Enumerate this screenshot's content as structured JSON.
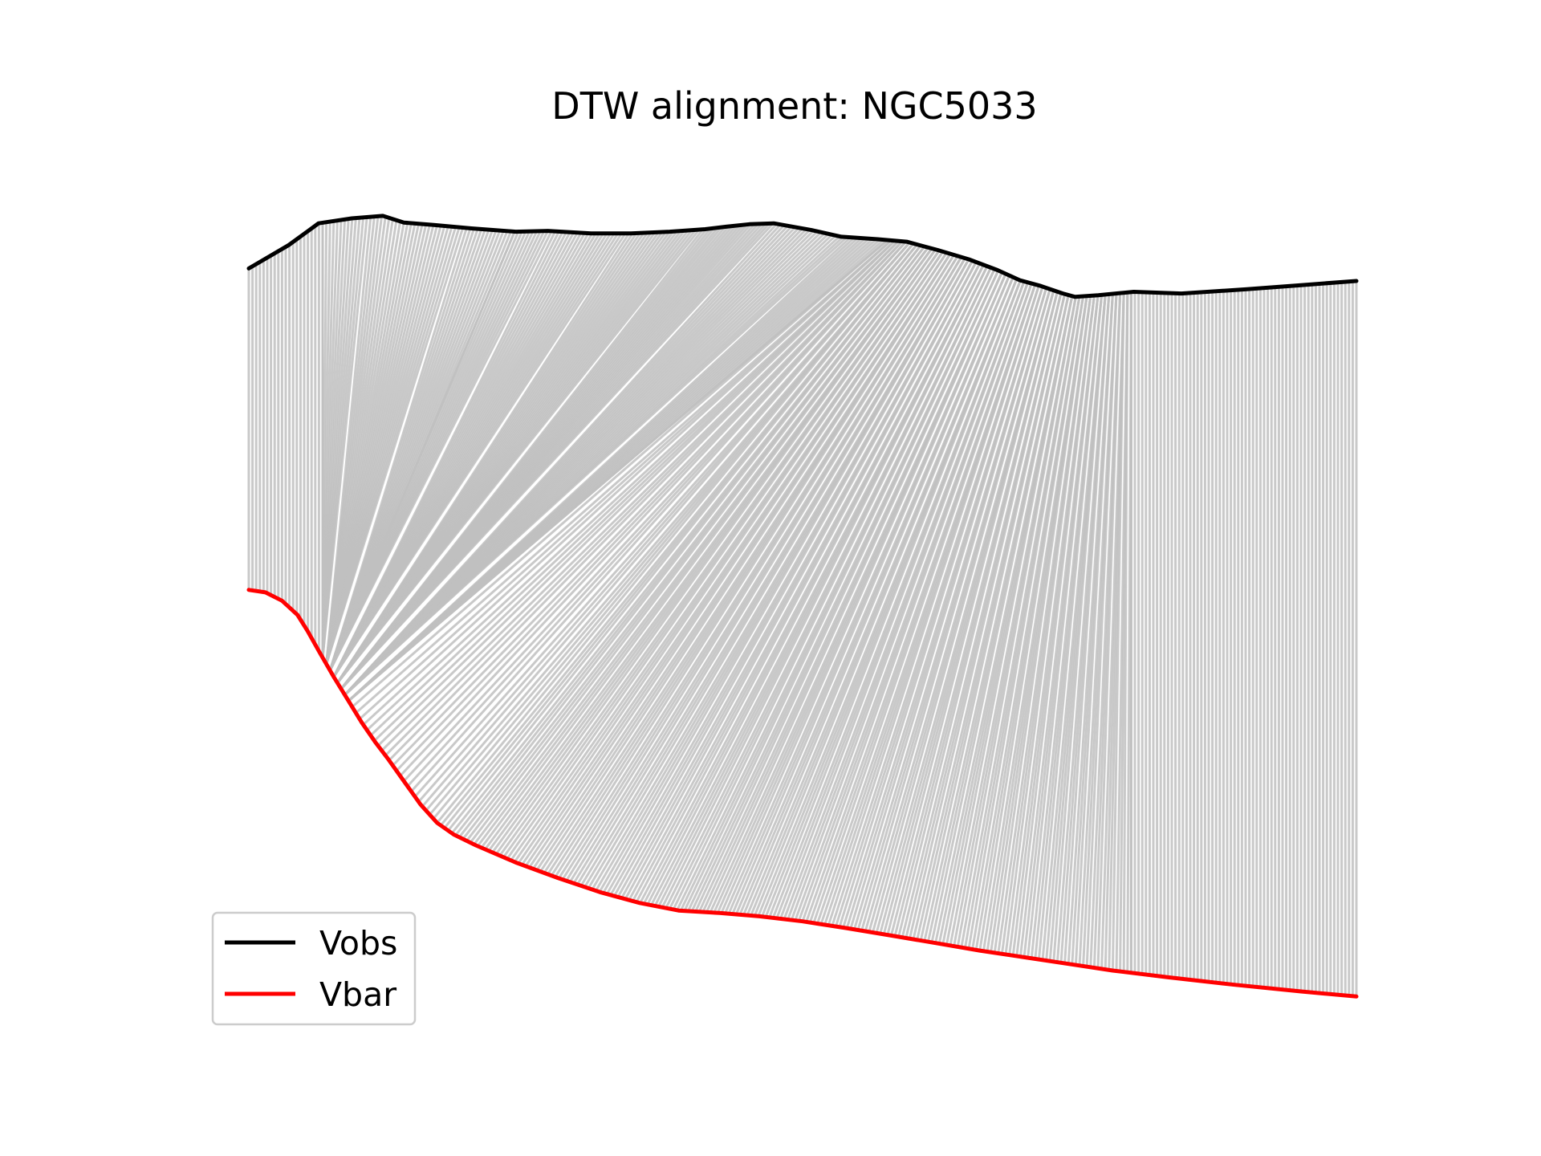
{
  "chart_data": {
    "type": "line",
    "title": "DTW alignment: NGC5033",
    "xlabel": "",
    "ylabel": "",
    "axes_visible": false,
    "grid": false,
    "legend": {
      "placement": "lower-left",
      "entries": [
        {
          "label": "Vobs",
          "color": "#000000"
        },
        {
          "label": "Vbar",
          "color": "#ff0000"
        }
      ]
    },
    "xlim": [
      0,
      100
    ],
    "ylim": [
      0,
      100
    ],
    "series": [
      {
        "name": "Vobs",
        "color": "#000000",
        "x": [
          0,
          3.6,
          6.3,
          9.3,
          12.1,
          14.0,
          16.7,
          20.1,
          24.1,
          27.0,
          30.9,
          34.5,
          38.0,
          41.2,
          43.1,
          45.2,
          47.4,
          50.8,
          53.5,
          56.8,
          59.4,
          62.2,
          65.0,
          67.6,
          69.6,
          71.5,
          73.5,
          74.6,
          76.7,
          79.9,
          84.2,
          90.0,
          95.0,
          100.0
        ],
        "y": [
          89.0,
          91.8,
          94.4,
          95.0,
          95.3,
          94.5,
          94.2,
          93.8,
          93.4,
          93.5,
          93.2,
          93.2,
          93.4,
          93.7,
          94.0,
          94.3,
          94.4,
          93.6,
          92.8,
          92.5,
          92.2,
          91.2,
          90.1,
          88.8,
          87.6,
          86.9,
          86.0,
          85.6,
          85.8,
          86.2,
          86.0,
          86.5,
          87.0,
          87.5
        ]
      },
      {
        "name": "Vbar",
        "color": "#ff0000",
        "x": [
          0,
          1.5,
          3.0,
          4.4,
          5.3,
          6.4,
          7.7,
          9.0,
          10.2,
          11.4,
          12.6,
          14.0,
          15.5,
          17.0,
          18.5,
          20.5,
          24.2,
          27.9,
          31.7,
          35.3,
          38.8,
          42.5,
          46.1,
          50.0,
          53.9,
          58.0,
          62.0,
          66.0,
          70.0,
          74.0,
          78.0,
          83.0,
          89.0,
          95.0,
          100.0
        ],
        "y": [
          50.5,
          50.2,
          49.2,
          47.5,
          45.6,
          43.0,
          40.0,
          37.2,
          34.6,
          32.3,
          30.2,
          27.6,
          24.8,
          22.6,
          21.2,
          19.9,
          17.8,
          16.0,
          14.3,
          13.0,
          12.1,
          11.8,
          11.4,
          10.8,
          10.0,
          9.1,
          8.2,
          7.3,
          6.5,
          5.7,
          4.9,
          4.1,
          3.2,
          2.4,
          1.8
        ]
      }
    ],
    "alignment_line_color": "#c0c0c0",
    "alignment_pairs": [
      [
        0,
        0
      ],
      [
        1,
        0
      ],
      [
        2,
        0
      ],
      [
        3,
        0
      ],
      [
        4,
        0
      ],
      [
        5,
        0
      ],
      [
        6,
        0
      ],
      [
        7,
        0
      ],
      [
        8,
        0
      ],
      [
        9,
        0
      ],
      [
        10,
        0
      ],
      [
        11,
        0
      ],
      [
        12,
        0
      ],
      [
        13,
        0
      ],
      [
        14,
        0
      ],
      [
        15,
        0
      ],
      [
        16,
        1
      ],
      [
        17,
        2
      ],
      [
        18,
        3
      ],
      [
        19,
        3
      ],
      [
        20,
        4
      ],
      [
        21,
        4
      ],
      [
        22,
        4
      ],
      [
        23,
        4
      ],
      [
        24,
        4
      ],
      [
        25,
        4
      ],
      [
        26,
        4
      ],
      [
        27,
        4
      ],
      [
        28,
        4
      ],
      [
        29,
        4
      ],
      [
        30,
        4
      ],
      [
        31,
        4
      ],
      [
        32,
        4
      ],
      [
        33,
        4
      ],
      [
        34,
        4
      ],
      [
        35,
        4
      ],
      [
        36,
        4
      ],
      [
        37,
        4
      ],
      [
        38,
        4
      ],
      [
        39,
        4
      ],
      [
        40,
        4
      ],
      [
        41,
        4
      ],
      [
        42,
        4
      ],
      [
        43,
        4
      ],
      [
        44,
        4
      ],
      [
        45,
        4
      ],
      [
        46,
        4
      ],
      [
        47,
        4
      ],
      [
        48,
        4
      ],
      [
        49,
        4
      ],
      [
        50,
        4
      ],
      [
        51,
        4
      ],
      [
        52,
        4
      ],
      [
        53,
        4
      ],
      [
        54,
        4
      ],
      [
        55,
        4
      ],
      [
        56,
        4
      ],
      [
        57,
        4
      ],
      [
        58,
        4
      ],
      [
        59,
        4
      ],
      [
        60,
        4
      ],
      [
        61,
        4
      ],
      [
        62,
        4
      ],
      [
        63,
        4
      ],
      [
        64,
        4
      ],
      [
        65,
        4
      ],
      [
        66,
        4
      ],
      [
        67,
        4
      ],
      [
        68,
        4
      ],
      [
        69,
        4
      ],
      [
        70,
        4
      ],
      [
        71,
        4
      ],
      [
        72,
        4
      ],
      [
        73,
        4
      ],
      [
        74,
        4
      ],
      [
        75,
        4
      ],
      [
        76,
        4
      ],
      [
        77,
        4
      ],
      [
        78,
        4
      ],
      [
        79,
        4
      ],
      [
        80,
        4
      ],
      [
        81,
        4
      ],
      [
        82,
        4
      ],
      [
        83,
        4
      ],
      [
        84,
        4
      ],
      [
        85,
        4
      ],
      [
        86,
        4
      ],
      [
        87,
        4
      ],
      [
        88,
        4
      ],
      [
        89,
        4
      ],
      [
        90,
        4
      ],
      [
        91,
        4
      ],
      [
        92,
        4
      ],
      [
        93,
        4
      ],
      [
        94,
        4
      ],
      [
        95,
        4
      ],
      [
        96,
        4
      ],
      [
        97,
        4
      ],
      [
        98,
        4
      ],
      [
        99,
        4
      ],
      [
        100,
        4
      ],
      [
        101,
        4
      ],
      [
        102,
        4
      ],
      [
        103,
        4
      ],
      [
        104,
        4
      ],
      [
        105,
        4
      ],
      [
        106,
        4
      ],
      [
        107,
        4
      ],
      [
        108,
        4
      ],
      [
        109,
        4
      ],
      [
        110,
        4
      ],
      [
        111,
        4
      ],
      [
        112,
        4
      ],
      [
        113,
        4
      ],
      [
        114,
        4
      ],
      [
        115,
        4
      ],
      [
        116,
        4
      ],
      [
        117,
        4
      ],
      [
        118,
        4
      ],
      [
        119,
        4
      ],
      [
        120,
        4
      ],
      [
        121,
        4
      ],
      [
        122,
        4
      ],
      [
        123,
        4
      ],
      [
        124,
        4
      ],
      [
        125,
        4
      ],
      [
        126,
        4
      ],
      [
        127,
        4
      ],
      [
        128,
        4
      ],
      [
        129,
        4
      ],
      [
        130,
        4
      ],
      [
        131,
        4
      ],
      [
        132,
        4
      ],
      [
        133,
        4
      ],
      [
        134,
        4
      ],
      [
        135,
        4
      ],
      [
        136,
        4
      ],
      [
        137,
        4
      ],
      [
        138,
        4
      ],
      [
        139,
        4
      ],
      [
        140,
        4
      ],
      [
        141,
        4
      ],
      [
        142,
        4
      ],
      [
        143,
        4
      ],
      [
        144,
        4
      ],
      [
        145,
        4
      ],
      [
        146,
        4
      ],
      [
        147,
        4
      ],
      [
        148,
        4
      ],
      [
        149,
        4
      ],
      [
        150,
        4
      ],
      [
        151,
        4
      ],
      [
        152,
        4
      ],
      [
        153,
        4
      ],
      [
        154,
        4
      ],
      [
        155,
        4
      ],
      [
        156,
        4
      ],
      [
        157,
        4
      ],
      [
        158,
        4
      ],
      [
        159,
        4
      ],
      [
        160,
        4
      ],
      [
        161,
        4
      ],
      [
        162,
        4
      ],
      [
        163,
        4
      ],
      [
        164,
        4
      ],
      [
        165,
        4
      ],
      [
        166,
        4
      ],
      [
        167,
        4
      ],
      [
        168,
        4
      ],
      [
        169,
        4
      ],
      [
        170,
        4
      ],
      [
        171,
        4
      ],
      [
        172,
        4
      ],
      [
        173,
        4
      ],
      [
        174,
        4
      ],
      [
        175,
        4
      ],
      [
        176,
        4
      ],
      [
        177,
        4
      ],
      [
        178,
        4
      ],
      [
        179,
        4
      ],
      [
        180,
        4
      ],
      [
        181,
        4
      ],
      [
        182,
        4
      ],
      [
        183,
        4
      ],
      [
        184,
        4
      ],
      [
        185,
        4
      ],
      [
        186,
        4
      ],
      [
        187,
        4
      ],
      [
        188,
        4
      ],
      [
        189,
        4
      ],
      [
        190,
        4
      ],
      [
        191,
        4
      ],
      [
        192,
        4
      ],
      [
        193,
        4
      ],
      [
        194,
        4
      ],
      [
        195,
        4
      ],
      [
        196,
        4
      ],
      [
        197,
        4
      ],
      [
        198,
        4
      ],
      [
        199,
        4
      ],
      [
        200,
        4
      ],
      [
        201,
        4
      ],
      [
        202,
        4
      ],
      [
        203,
        4
      ],
      [
        204,
        4
      ],
      [
        205,
        4
      ],
      [
        206,
        4
      ],
      [
        207,
        4
      ],
      [
        208,
        4
      ],
      [
        209,
        4
      ],
      [
        210,
        4
      ],
      [
        211,
        4
      ],
      [
        212,
        4
      ],
      [
        213,
        4
      ],
      [
        214,
        4
      ],
      [
        215,
        4
      ],
      [
        216,
        4
      ],
      [
        217,
        4
      ],
      [
        218,
        4
      ],
      [
        219,
        4
      ],
      [
        220,
        4
      ],
      [
        221,
        4
      ],
      [
        222,
        4
      ],
      [
        223,
        4
      ],
      [
        224,
        4
      ],
      [
        225,
        4
      ],
      [
        226,
        4
      ],
      [
        227,
        4
      ],
      [
        228,
        4
      ],
      [
        229,
        4
      ],
      [
        230,
        4
      ],
      [
        231,
        4
      ],
      [
        232,
        4
      ],
      [
        233,
        4
      ],
      [
        234,
        4
      ],
      [
        235,
        4
      ],
      [
        236,
        4
      ],
      [
        237,
        4
      ],
      [
        238,
        4
      ],
      [
        239,
        4
      ],
      [
        240,
        4
      ],
      [
        241,
        4
      ],
      [
        242,
        4
      ],
      [
        243,
        4
      ],
      [
        244,
        4
      ],
      [
        245,
        4
      ],
      [
        246,
        4
      ],
      [
        247,
        4
      ],
      [
        248,
        4
      ],
      [
        249,
        4
      ],
      [
        250,
        4
      ],
      [
        251,
        4
      ],
      [
        252,
        4
      ],
      [
        253,
        4
      ],
      [
        254,
        4
      ],
      [
        255,
        4
      ],
      [
        256,
        4
      ],
      [
        257,
        4
      ],
      [
        258,
        4
      ],
      [
        259,
        4
      ],
      [
        260,
        4
      ],
      [
        261,
        4
      ],
      [
        262,
        4
      ],
      [
        263,
        4
      ],
      [
        264,
        4
      ],
      [
        265,
        4
      ],
      [
        266,
        4
      ],
      [
        267,
        4
      ],
      [
        268,
        4
      ],
      [
        269,
        4
      ],
      [
        270,
        4
      ],
      [
        271,
        4
      ],
      [
        272,
        4
      ],
      [
        273,
        4
      ],
      [
        274,
        4
      ],
      [
        275,
        4
      ],
      [
        276,
        4
      ],
      [
        277,
        4
      ],
      [
        278,
        4
      ],
      [
        279,
        4
      ],
      [
        280,
        4
      ],
      [
        281,
        4
      ],
      [
        282,
        4
      ],
      [
        283,
        4
      ],
      [
        284,
        4
      ],
      [
        285,
        4
      ],
      [
        286,
        4
      ],
      [
        287,
        4
      ],
      [
        288,
        4
      ],
      [
        289,
        4
      ],
      [
        290,
        4
      ],
      [
        291,
        4
      ],
      [
        292,
        4
      ],
      [
        293,
        4
      ],
      [
        294,
        4
      ],
      [
        295,
        4
      ],
      [
        296,
        4
      ],
      [
        297,
        4
      ],
      [
        298,
        4
      ],
      [
        299,
        4
      ],
      [
        300,
        4
      ]
    ]
  }
}
